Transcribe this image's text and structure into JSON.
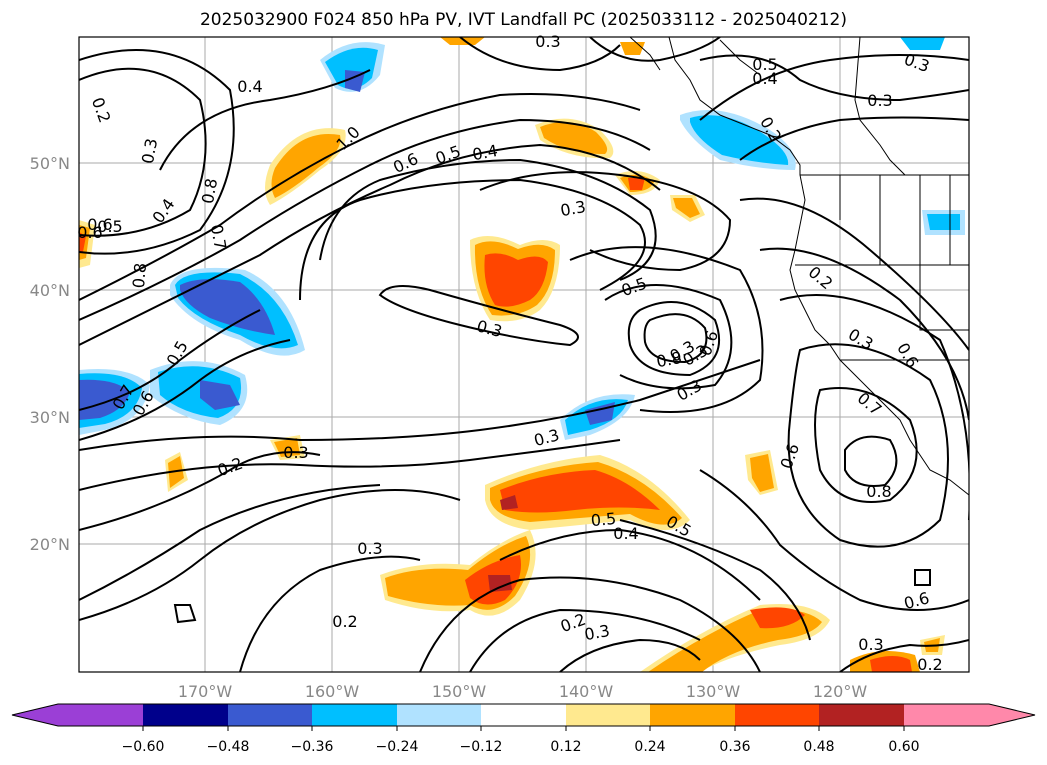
{
  "title": "2025032900 F024 850 hPa PV, IVT Landfall PC (2025033112 - 2025040212)",
  "axes": {
    "lon_ticks": [
      "170°W",
      "160°W",
      "150°W",
      "140°W",
      "130°W",
      "120°W"
    ],
    "lat_ticks": [
      "50°N",
      "40°N",
      "30°N",
      "20°N"
    ]
  },
  "colorbar": {
    "labels": [
      "−0.60",
      "−0.48",
      "−0.36",
      "−0.24",
      "−0.12",
      "0.12",
      "0.24",
      "0.36",
      "0.48",
      "0.60"
    ],
    "colors": [
      "#9b3fd6",
      "#00008b",
      "#3a5ad0",
      "#00bfff",
      "#b0e2ff",
      "#ffffff",
      "#ffe98f",
      "#ffa500",
      "#ff4500",
      "#b22222",
      "#ff88aa"
    ]
  },
  "contour_labels": [
    "0.4",
    "0.2",
    "0.3",
    "0.8",
    "0.4",
    "0.7",
    "0.8",
    "0.5",
    "0.6",
    "1.0",
    "0.6",
    "0.5",
    "0.4",
    "0.3",
    "0.5",
    "0.4",
    "0.3",
    "0.2",
    "0.3",
    "0.3",
    "0.5",
    "0.3",
    "0.8",
    "0.6",
    "0.3",
    "0.6",
    "0.7",
    "0.5",
    "0.6",
    "0.3",
    "0.3",
    "0.2",
    "0.5",
    "0.4",
    "0.5",
    "0.3",
    "0.2",
    "0.3",
    "0.6",
    "0.7",
    "0.8",
    "0.3",
    "0.2",
    "0.6",
    "0.3",
    "0.2",
    "0.2",
    "0.3",
    "0.3",
    "0.6"
  ],
  "colors": {
    "positive_fill": "#ffa500",
    "negative_fill": "#00bfff",
    "contour": "#000000",
    "grid": "#aaaaaa"
  }
}
